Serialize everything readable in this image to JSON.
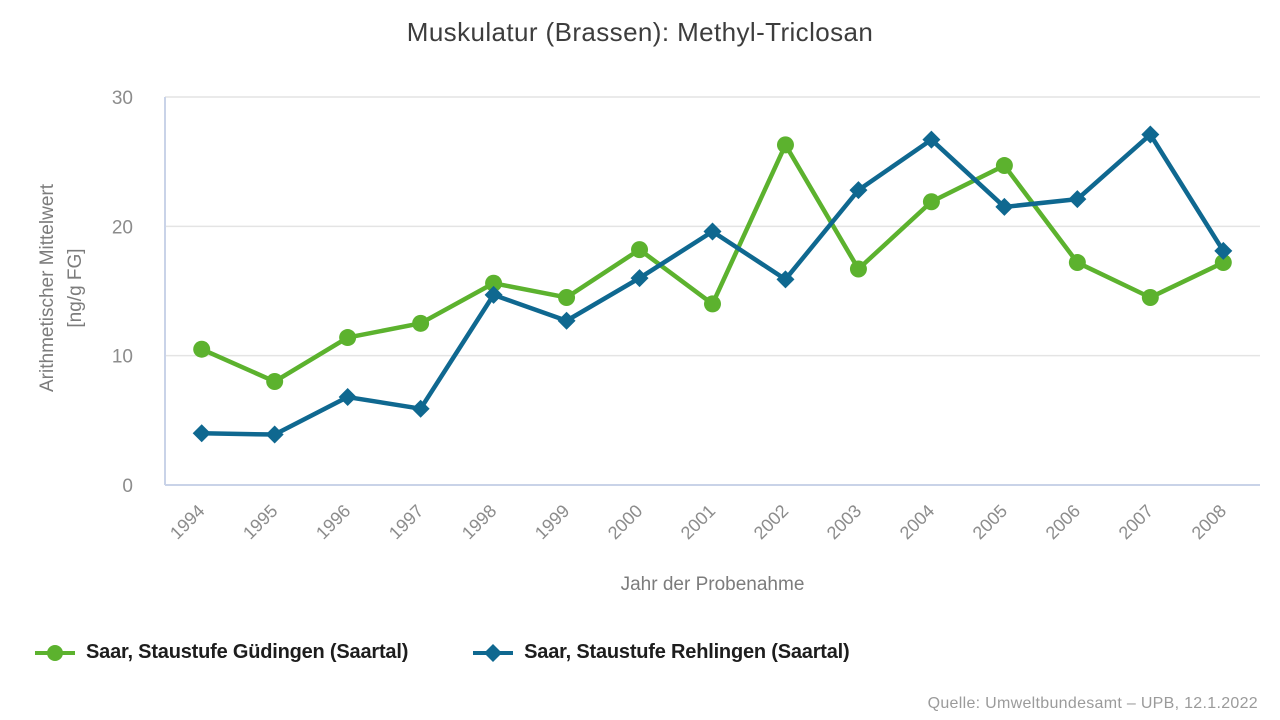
{
  "title": "Muskulatur (Brassen): Methyl-Triclosan",
  "source": "Quelle: Umweltbundesamt – UPB, 12.1.2022",
  "chart_data": {
    "type": "line",
    "title": "Muskulatur (Brassen): Methyl-Triclosan",
    "xlabel": "Jahr der Probenahme",
    "ylabel": "Arithmetischer Mittelwert [ng/g FG]",
    "ylabel_lines": [
      "Arithmetischer Mittelwert",
      "[ng/g FG]"
    ],
    "ylim": [
      0,
      30
    ],
    "yticks": [
      0,
      10,
      20,
      30
    ],
    "grid": true,
    "legend_position": "bottom-left",
    "x_tick_rotation": -45,
    "categories": [
      "1994",
      "1995",
      "1996",
      "1997",
      "1998",
      "1999",
      "2000",
      "2001",
      "2002",
      "2003",
      "2004",
      "2005",
      "2006",
      "2007",
      "2008"
    ],
    "series": [
      {
        "name": "Saar, Staustufe Güdingen (Saartal)",
        "marker": "circle",
        "color": "#5cb22e",
        "values": [
          10.5,
          8.0,
          11.4,
          12.5,
          15.6,
          14.5,
          18.2,
          14.0,
          26.3,
          16.7,
          21.9,
          24.7,
          17.2,
          14.5,
          17.2
        ]
      },
      {
        "name": "Saar, Staustufe Rehlingen (Saartal)",
        "marker": "diamond",
        "color": "#0f6890",
        "values": [
          4.0,
          3.9,
          6.8,
          5.9,
          14.7,
          12.7,
          16.0,
          19.6,
          15.9,
          22.8,
          26.7,
          21.5,
          22.1,
          27.1,
          18.1
        ]
      }
    ],
    "colors": {
      "grid": "#e4e4e4",
      "axis_border": "#c9d3e8",
      "tick_label": "#8c8c8c",
      "axis_title": "#7c7c7c",
      "title_text": "#3d3d3d",
      "legend_text": "#1d1d1d",
      "source_text": "#9b9b9b",
      "background": "#ffffff"
    }
  }
}
